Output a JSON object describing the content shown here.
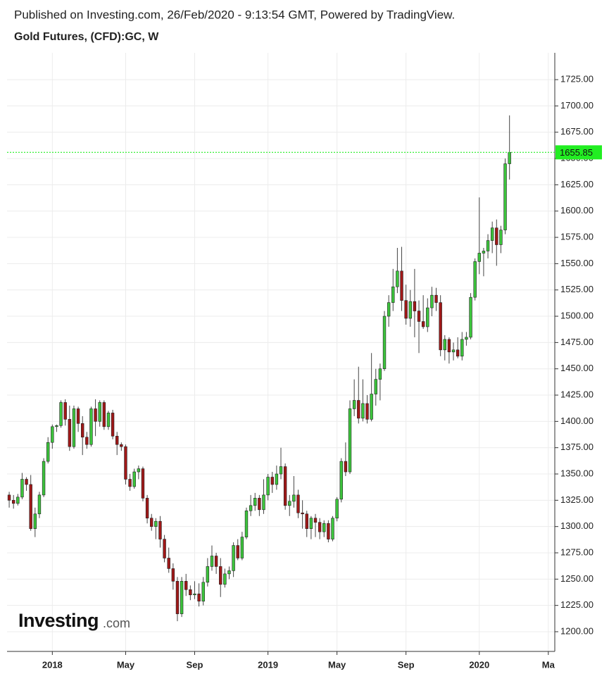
{
  "chart_data": {
    "type": "candlestick",
    "header": "Published on Investing.com, 26/Feb/2020 - 9:13:54 GMT, Powered by TradingView.",
    "title": "Gold Futures, (CFD):GC, W",
    "watermark": "Investing",
    "watermark_suffix": ".com",
    "categories": [
      null,
      null,
      null,
      null,
      null,
      null,
      null,
      null,
      null,
      null,
      "2018",
      null,
      null,
      null,
      null,
      null,
      null,
      null,
      null,
      null,
      null,
      null,
      null,
      null,
      null,
      null,
      null,
      "May",
      null,
      null,
      null,
      null,
      null,
      null,
      null,
      null,
      null,
      null,
      null,
      null,
      null,
      null,
      null,
      "Sep",
      null,
      null,
      null,
      null,
      null,
      null,
      null,
      null,
      null,
      null,
      null,
      null,
      null,
      null,
      null,
      null,
      "2019",
      null,
      null,
      null,
      null,
      null,
      null,
      null,
      null,
      null,
      null,
      null,
      null,
      null,
      null,
      null,
      "May",
      null,
      null,
      null,
      null,
      null,
      null,
      null,
      null,
      null,
      null,
      null,
      null,
      null,
      null,
      null,
      "Sep",
      null,
      null,
      null,
      null,
      null,
      null,
      null,
      null,
      null,
      null,
      null,
      null,
      null,
      null,
      null,
      null,
      "2020",
      null,
      null,
      null,
      null,
      null,
      null,
      null,
      null,
      null,
      null,
      null,
      null,
      null,
      null,
      null,
      "Ma",
      null
    ],
    "open": [
      1330,
      1325,
      1322,
      1328,
      1345,
      1340,
      1298,
      1312,
      1330,
      1362,
      1380,
      1395,
      1396,
      1418,
      1402,
      1376,
      1412,
      1398,
      1385,
      1378,
      1412,
      1400,
      1418,
      1395,
      1408,
      1386,
      1378,
      1376,
      1345,
      1338,
      1352,
      1355,
      1327,
      1308,
      1300,
      1305,
      1288,
      1270,
      1260,
      1248,
      1217,
      1248,
      1240,
      1235,
      1236,
      1229,
      1247,
      1262,
      1272,
      1262,
      1245,
      1255,
      1258,
      1282,
      1270,
      1290,
      1315,
      1320,
      1327,
      1316,
      1330,
      1347,
      1340,
      1350,
      1357,
      1320,
      1324,
      1330,
      1313,
      1312,
      1298,
      1308,
      1304,
      1295,
      1303,
      1288,
      1308,
      1326,
      1362,
      1352,
      1412,
      1420,
      1403,
      1417,
      1402,
      1426,
      1440,
      1450,
      1500,
      1513,
      1528,
      1543,
      1515,
      1498,
      1514,
      1505,
      1495,
      1490,
      1508,
      1520,
      1513,
      1468,
      1478,
      1466,
      1468,
      1462,
      1478,
      1480,
      1518,
      1552,
      1560,
      1562,
      1572,
      1584,
      1568,
      1582,
      1645,
      null,
      null,
      null,
      null,
      null,
      null,
      null,
      null,
      null,
      null
    ],
    "high": [
      1333,
      1330,
      1331,
      1351,
      1347,
      1349,
      1318,
      1333,
      1365,
      1385,
      1397,
      1397,
      1420,
      1421,
      1415,
      1415,
      1414,
      1405,
      1390,
      1414,
      1421,
      1420,
      1420,
      1410,
      1411,
      1390,
      1380,
      1378,
      1350,
      1355,
      1358,
      1357,
      1330,
      1312,
      1308,
      1310,
      1292,
      1280,
      1265,
      1252,
      1252,
      1255,
      1244,
      1248,
      1246,
      1252,
      1270,
      1282,
      1275,
      1270,
      1260,
      1262,
      1285,
      1288,
      1295,
      1318,
      1330,
      1332,
      1330,
      1345,
      1350,
      1352,
      1358,
      1375,
      1360,
      1330,
      1348,
      1335,
      1325,
      1315,
      1310,
      1312,
      1308,
      1306,
      1306,
      1310,
      1328,
      1365,
      1380,
      1420,
      1440,
      1452,
      1440,
      1425,
      1465,
      1450,
      1455,
      1505,
      1520,
      1545,
      1565,
      1566,
      1530,
      1525,
      1545,
      1515,
      1520,
      1517,
      1528,
      1527,
      1520,
      1482,
      1480,
      1475,
      1480,
      1485,
      1485,
      1522,
      1555,
      1613,
      1565,
      1578,
      1590,
      1592,
      1586,
      1650,
      1691,
      null,
      null,
      null,
      null,
      null,
      null,
      null,
      null,
      null,
      null
    ],
    "low": [
      1318,
      1317,
      1320,
      1326,
      1334,
      1296,
      1290,
      1308,
      1328,
      1360,
      1374,
      1390,
      1394,
      1396,
      1372,
      1374,
      1390,
      1368,
      1374,
      1376,
      1386,
      1395,
      1392,
      1392,
      1383,
      1368,
      1372,
      1340,
      1334,
      1336,
      1345,
      1324,
      1303,
      1296,
      1288,
      1280,
      1266,
      1256,
      1240,
      1210,
      1214,
      1234,
      1230,
      1231,
      1224,
      1225,
      1243,
      1258,
      1255,
      1233,
      1242,
      1250,
      1252,
      1268,
      1268,
      1288,
      1310,
      1315,
      1310,
      1312,
      1325,
      1332,
      1335,
      1345,
      1316,
      1310,
      1318,
      1308,
      1298,
      1290,
      1288,
      1290,
      1288,
      1290,
      1285,
      1286,
      1305,
      1323,
      1348,
      1350,
      1405,
      1398,
      1400,
      1398,
      1400,
      1415,
      1420,
      1448,
      1490,
      1505,
      1522,
      1505,
      1492,
      1490,
      1480,
      1465,
      1488,
      1485,
      1500,
      1505,
      1462,
      1458,
      1455,
      1458,
      1460,
      1458,
      1472,
      1478,
      1515,
      1540,
      1538,
      1555,
      1560,
      1548,
      1560,
      1578,
      1630,
      null,
      null,
      null,
      null,
      null,
      null,
      null,
      null,
      null,
      null
    ],
    "close": [
      1325,
      1322,
      1328,
      1345,
      1340,
      1298,
      1312,
      1330,
      1362,
      1380,
      1395,
      1396,
      1418,
      1402,
      1376,
      1412,
      1398,
      1385,
      1378,
      1412,
      1400,
      1418,
      1395,
      1408,
      1386,
      1378,
      1376,
      1345,
      1338,
      1352,
      1355,
      1327,
      1308,
      1300,
      1305,
      1288,
      1270,
      1260,
      1248,
      1217,
      1248,
      1240,
      1235,
      1236,
      1229,
      1247,
      1262,
      1272,
      1262,
      1245,
      1255,
      1258,
      1282,
      1270,
      1290,
      1315,
      1320,
      1327,
      1316,
      1330,
      1347,
      1340,
      1350,
      1357,
      1320,
      1324,
      1330,
      1313,
      1312,
      1298,
      1308,
      1304,
      1295,
      1303,
      1288,
      1308,
      1326,
      1362,
      1352,
      1412,
      1420,
      1403,
      1417,
      1402,
      1426,
      1440,
      1450,
      1500,
      1513,
      1528,
      1543,
      1515,
      1498,
      1514,
      1505,
      1495,
      1490,
      1508,
      1520,
      1513,
      1468,
      1478,
      1466,
      1468,
      1462,
      1478,
      1480,
      1518,
      1552,
      1560,
      1562,
      1572,
      1584,
      1568,
      1582,
      1645,
      1655.85,
      null,
      null,
      null,
      null,
      null,
      null,
      null,
      null,
      null,
      null
    ],
    "up_color": "#3cc43c",
    "down_color": "#a01818",
    "last_price": 1655.85,
    "last_price_color": "#22ee22",
    "ylim": [
      1181.25,
      1750.5
    ],
    "yticks": [
      {
        "value": 1200,
        "label": "1200.00"
      },
      {
        "value": 1225,
        "label": "1225.00"
      },
      {
        "value": 1250,
        "label": "1250.00"
      },
      {
        "value": 1275,
        "label": "1275.00"
      },
      {
        "value": 1300,
        "label": "1300.00"
      },
      {
        "value": 1325,
        "label": "1325.00"
      },
      {
        "value": 1350,
        "label": "1350.00"
      },
      {
        "value": 1375,
        "label": "1375.00"
      },
      {
        "value": 1400,
        "label": "1400.00"
      },
      {
        "value": 1425,
        "label": "1425.00"
      },
      {
        "value": 1450,
        "label": "1450.00"
      },
      {
        "value": 1475,
        "label": "1475.00"
      },
      {
        "value": 1500,
        "label": "1500.00"
      },
      {
        "value": 1525,
        "label": "1525.00"
      },
      {
        "value": 1550,
        "label": "1550.00"
      },
      {
        "value": 1575,
        "label": "1575.00"
      },
      {
        "value": 1600,
        "label": "1600.00"
      },
      {
        "value": 1625,
        "label": "1625.00"
      },
      {
        "value": 1650,
        "label": "1650.00"
      },
      {
        "value": 1675,
        "label": "1675.00"
      },
      {
        "value": 1700,
        "label": "1700.00"
      },
      {
        "value": 1725,
        "label": "1725.00"
      }
    ],
    "grid": true
  }
}
